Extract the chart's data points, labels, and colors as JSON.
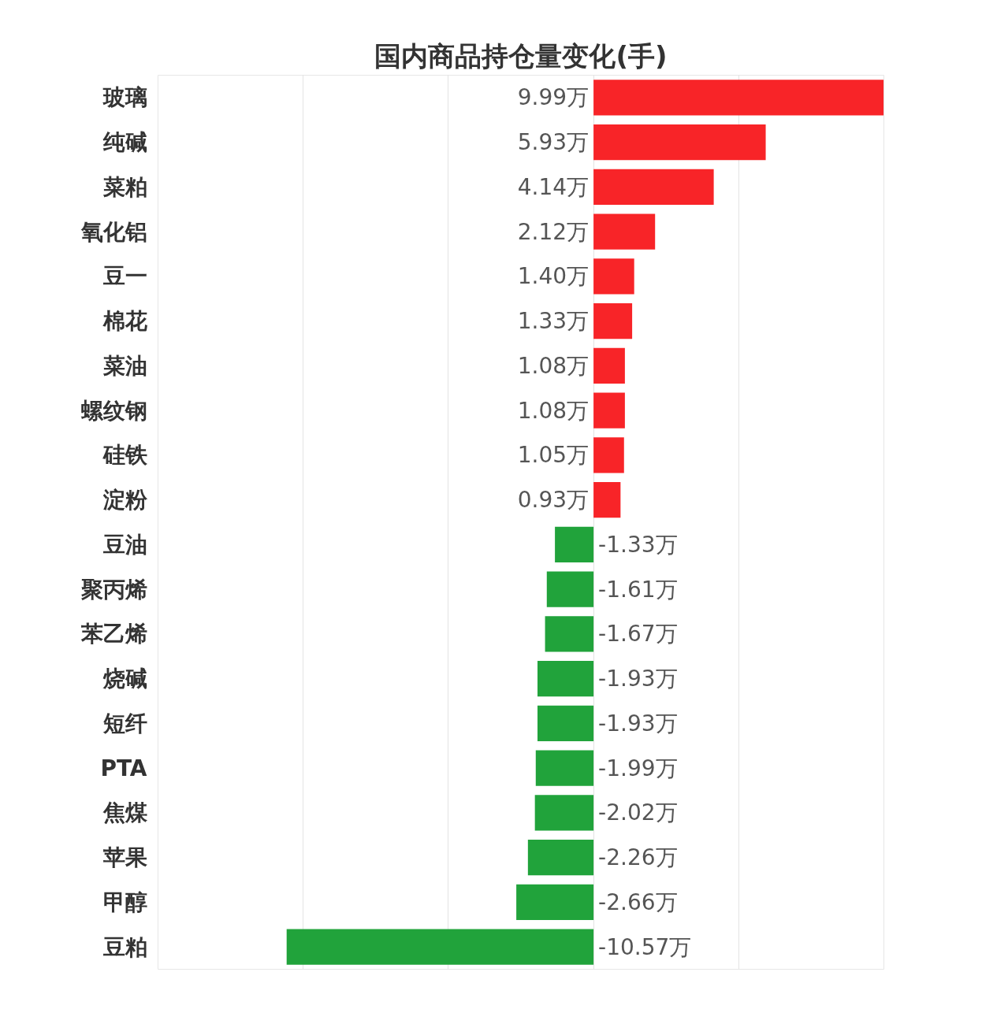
{
  "chart_data": {
    "type": "bar",
    "orientation": "horizontal",
    "title": "国内商品持仓量变化(手)",
    "categories": [
      "玻璃",
      "纯碱",
      "菜粕",
      "氧化铝",
      "豆一",
      "棉花",
      "菜油",
      "螺纹钢",
      "硅铁",
      "淀粉",
      "豆油",
      "聚丙烯",
      "苯乙烯",
      "烧碱",
      "短纤",
      "PTA",
      "焦煤",
      "苹果",
      "甲醇",
      "豆粕"
    ],
    "values": [
      9.99,
      5.93,
      4.14,
      2.12,
      1.4,
      1.33,
      1.08,
      1.08,
      1.05,
      0.93,
      -1.33,
      -1.61,
      -1.67,
      -1.93,
      -1.93,
      -1.99,
      -2.02,
      -2.26,
      -2.66,
      -10.57
    ],
    "value_labels": [
      "9.99万",
      "5.93万",
      "4.14万",
      "2.12万",
      "1.40万",
      "1.33万",
      "1.08万",
      "1.08万",
      "1.05万",
      "0.93万",
      "-1.33万",
      "-1.61万",
      "-1.67万",
      "-1.93万",
      "-1.93万",
      "-1.99万",
      "-2.02万",
      "-2.26万",
      "-2.66万",
      "-10.57万"
    ],
    "colors": [
      "#f82428",
      "#f82428",
      "#f82428",
      "#f82428",
      "#f82428",
      "#f82428",
      "#f82428",
      "#f82428",
      "#f82428",
      "#f82428",
      "#21a33b",
      "#21a33b",
      "#21a33b",
      "#21a33b",
      "#21a33b",
      "#21a33b",
      "#21a33b",
      "#21a33b",
      "#21a33b",
      "#21a33b"
    ],
    "xlim": [
      -15,
      10
    ],
    "xticks": [
      {
        "value": -10,
        "label": null
      },
      {
        "value": -5,
        "label": null
      },
      {
        "value": 0,
        "label": null
      },
      {
        "value": 5,
        "label": null
      },
      {
        "value": 10,
        "label": null
      }
    ],
    "grid": "x",
    "tick_labels": "y"
  }
}
